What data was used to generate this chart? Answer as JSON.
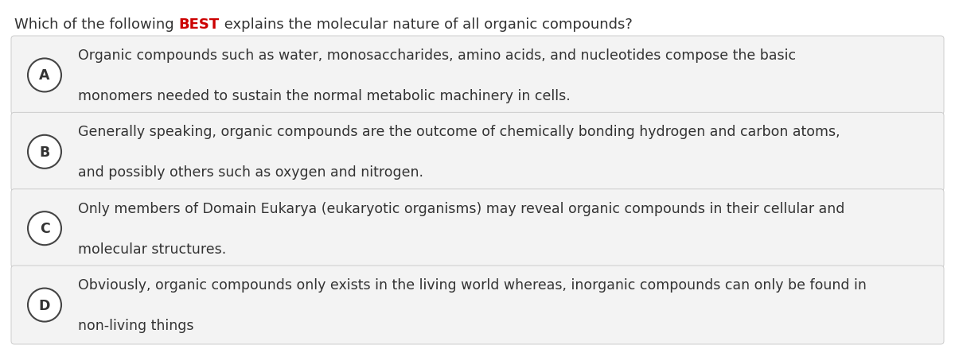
{
  "title_plain": "Which of the following ",
  "title_bold_red": "BEST",
  "title_plain2": " explains the molecular nature of all organic compounds?",
  "background_color": "#ffffff",
  "option_bg_color": "#f3f3f3",
  "option_border_color": "#cccccc",
  "circle_edge_color": "#444444",
  "circle_face_color": "#ffffff",
  "text_color": "#333333",
  "red_color": "#cc0000",
  "options": [
    {
      "label": "A",
      "line1": "Organic compounds such as water, monosaccharides, amino acids, and nucleotides compose the basic",
      "line2": "monomers needed to sustain the normal metabolic machinery in cells."
    },
    {
      "label": "B",
      "line1": "Generally speaking, organic compounds are the outcome of chemically bonding hydrogen and carbon atoms,",
      "line2": "and possibly others such as oxygen and nitrogen."
    },
    {
      "label": "C",
      "line1": "Only members of Domain Eukarya (eukaryotic organisms) may reveal organic compounds in their cellular and",
      "line2": "molecular structures."
    },
    {
      "label": "D",
      "line1": "Obviously, organic compounds only exists in the living world whereas, inorganic compounds can only be found in",
      "line2": "non-living things"
    }
  ],
  "title_fontsize": 13.0,
  "option_label_fontsize": 12.5,
  "option_text_fontsize": 12.5,
  "fig_width": 12.0,
  "fig_height": 4.35
}
